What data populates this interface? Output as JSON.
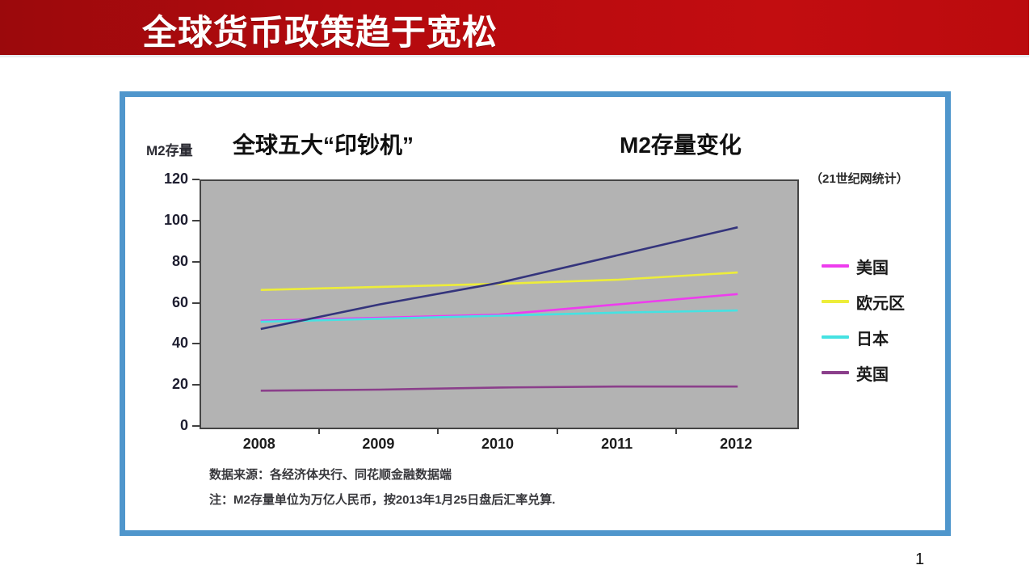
{
  "header": {
    "title": "全球货币政策趋于宽松",
    "bar_color_left": "#9b090c",
    "bar_color_right": "#c20d10"
  },
  "page": {
    "number": "1"
  },
  "card": {
    "border_color": "#4f96cc",
    "axis_label": "M2存量",
    "title_left": "全球五大“印钞机”",
    "title_right": "M2存量变化",
    "source_tag": "（21世纪网统计）",
    "footnote_line1": "数据来源：各经济体央行、同花顺金融数据端",
    "footnote_line2": "注：M2存量单位为万亿人民币，按2013年1月25日盘后汇率兑算."
  },
  "chart_data": {
    "type": "line",
    "title": "全球五大“印钞机” M2存量变化",
    "ylabel": "M2存量",
    "xlabel": "",
    "categories": [
      "2008",
      "2009",
      "2010",
      "2011",
      "2012"
    ],
    "ylim": [
      0,
      120
    ],
    "ytick_step": 20,
    "grid": false,
    "plot_bg": "#b3b3b3",
    "legend_position": "right",
    "series": [
      {
        "name": "美国",
        "color": "#ee3cee",
        "values": [
          52,
          53.5,
          55,
          60,
          65
        ],
        "legend_visible": true
      },
      {
        "name": "欧元区",
        "color": "#eded3a",
        "values": [
          67,
          68.5,
          70,
          72,
          75.5
        ],
        "legend_visible": true
      },
      {
        "name": "日本",
        "color": "#45e2e2",
        "values": [
          51.5,
          53,
          54.5,
          56,
          57
        ],
        "legend_visible": true
      },
      {
        "name": "英国",
        "color": "#8b3f8b",
        "values": [
          18,
          18.5,
          19.5,
          20,
          20
        ],
        "legend_visible": true
      },
      {
        "name": "",
        "color": "#34347c",
        "values": [
          48,
          60,
          70.5,
          84,
          97.5
        ],
        "legend_visible": false
      }
    ]
  }
}
